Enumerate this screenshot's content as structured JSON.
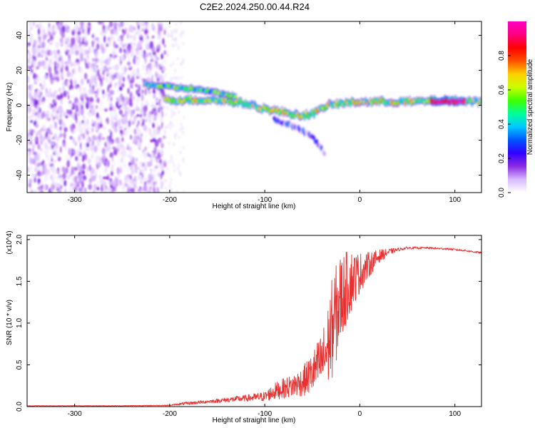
{
  "figure_title": "C2E2.2024.250.00.44.R24",
  "chart_data": [
    {
      "type": "heatmap",
      "name": "spectrogram",
      "xlabel": "Height of straight line (km)",
      "ylabel": "Frequency (Hz)",
      "xlim": [
        -350,
        128
      ],
      "ylim": [
        -50,
        48
      ],
      "xticks": [
        -300,
        -200,
        -100,
        0,
        100
      ],
      "xtick_labels": [
        "-300",
        "-200",
        "-100",
        "0",
        "100"
      ],
      "yticks": [
        -40,
        -20,
        0,
        20,
        40
      ],
      "ytick_labels": [
        "-40",
        "-20",
        "0",
        "20",
        "40"
      ],
      "colorbar": {
        "label": "Normalized spectral amplitude",
        "range": [
          0,
          1
        ],
        "ticks": [
          0,
          0.2,
          0.4,
          0.6,
          0.8
        ],
        "tick_labels": [
          "0.0",
          "0.2",
          "0.4",
          "0.6",
          "0.8"
        ],
        "colors": [
          "#ffffff",
          "#d8b8ff",
          "#8a2be2",
          "#3000ff",
          "#0055ff",
          "#00c8ff",
          "#00ff9a",
          "#40ff00",
          "#c8ff00",
          "#ffd000",
          "#ff5000",
          "#ff0000",
          "#ff0080",
          "#ff00c0"
        ]
      },
      "features": [
        {
          "name": "noise-region",
          "x_range": [
            -350,
            -205
          ],
          "f_range": [
            -50,
            48
          ],
          "amplitude": 0.1
        },
        {
          "name": "upper-track",
          "points": [
            [
              -225,
              12
            ],
            [
              -210,
              11
            ],
            [
              -190,
              10
            ],
            [
              -170,
              9
            ],
            [
              -150,
              7
            ],
            [
              -130,
              5
            ]
          ],
          "amplitude": 0.45
        },
        {
          "name": "main-track",
          "points": [
            [
              -205,
              3
            ],
            [
              -180,
              3
            ],
            [
              -150,
              3
            ],
            [
              -120,
              1
            ],
            [
              -100,
              -2
            ],
            [
              -80,
              -4
            ],
            [
              -60,
              -6
            ],
            [
              -45,
              -4
            ],
            [
              -35,
              0
            ],
            [
              -20,
              1
            ],
            [
              0,
              2
            ],
            [
              30,
              2
            ],
            [
              60,
              2
            ],
            [
              90,
              3
            ],
            [
              128,
              2
            ]
          ],
          "amplitude": 0.55
        },
        {
          "name": "lower-branch",
          "points": [
            [
              -90,
              -8
            ],
            [
              -70,
              -12
            ],
            [
              -50,
              -18
            ],
            [
              -40,
              -25
            ],
            [
              -36,
              -29
            ]
          ],
          "amplitude": 0.2
        },
        {
          "name": "flat-track-peak",
          "points": [
            [
              75,
              2
            ],
            [
              110,
              2
            ]
          ],
          "amplitude": 0.95
        }
      ]
    },
    {
      "type": "line",
      "name": "snr",
      "xlabel": "Height of straight line (km)",
      "ylabel": "SNR (10 * v/v)",
      "y_multiplier": "(x10^4)",
      "xlim": [
        -350,
        128
      ],
      "ylim": [
        0,
        2.05
      ],
      "xticks": [
        -300,
        -200,
        -100,
        0,
        100
      ],
      "xtick_labels": [
        "-300",
        "-200",
        "-100",
        "0",
        "100"
      ],
      "yticks": [
        0,
        0.5,
        1.0,
        1.5,
        2.0
      ],
      "ytick_labels": [
        "0.0",
        "0.5",
        "1.0",
        "1.5",
        "2.0"
      ],
      "color": "#e83030",
      "series": [
        {
          "name": "SNR",
          "x": [
            -350,
            -300,
            -250,
            -200,
            -190,
            -180,
            -160,
            -140,
            -120,
            -100,
            -90,
            -80,
            -70,
            -60,
            -50,
            -40,
            -35,
            -30,
            -25,
            -20,
            -15,
            -10,
            -5,
            0,
            10,
            20,
            30,
            40,
            50,
            70,
            90,
            110,
            128
          ],
          "y": [
            0.01,
            0.01,
            0.01,
            0.015,
            0.03,
            0.04,
            0.06,
            0.08,
            0.1,
            0.12,
            0.18,
            0.22,
            0.25,
            0.3,
            0.4,
            0.55,
            0.65,
            0.9,
            1.1,
            1.3,
            1.4,
            1.5,
            1.55,
            1.6,
            1.7,
            1.8,
            1.85,
            1.88,
            1.9,
            1.9,
            1.89,
            1.87,
            1.84
          ],
          "noise_amplitude": [
            0.003,
            0.003,
            0.003,
            0.005,
            0.015,
            0.02,
            0.02,
            0.03,
            0.04,
            0.06,
            0.1,
            0.12,
            0.14,
            0.18,
            0.25,
            0.35,
            0.45,
            0.6,
            0.6,
            0.55,
            0.45,
            0.4,
            0.3,
            0.25,
            0.15,
            0.08,
            0.04,
            0.02,
            0.015,
            0.012,
            0.012,
            0.012,
            0.012
          ]
        }
      ]
    }
  ]
}
